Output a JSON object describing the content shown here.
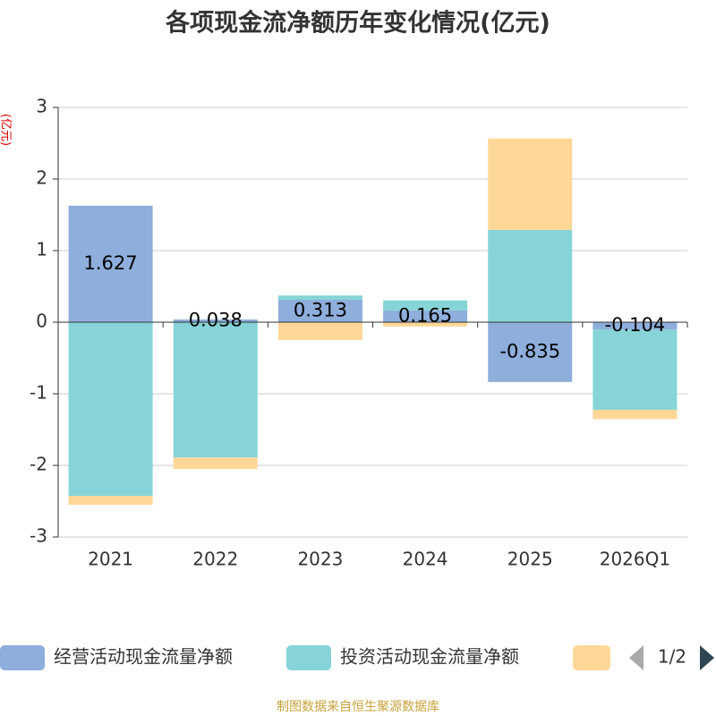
{
  "chart_data": {
    "type": "bar",
    "stacked": true,
    "title": "各项现金流净额历年变化情况(亿元)",
    "y_label": "(亿元)",
    "categories": [
      "2021",
      "2022",
      "2023",
      "2024",
      "2025",
      "2026Q1"
    ],
    "series": [
      {
        "name": "经营活动现金流量净额",
        "color": "#8eaedb",
        "values": [
          1.627,
          0.038,
          0.313,
          0.165,
          -0.835,
          -0.104
        ],
        "show_labels": true
      },
      {
        "name": "投资活动现金流量净额",
        "color": "#86d4d8",
        "values": [
          -2.425,
          -1.89,
          0.06,
          0.14,
          1.29,
          -1.12
        ]
      },
      {
        "color": "#ffd898",
        "values": [
          -0.125,
          -0.16,
          -0.25,
          -0.06,
          1.275,
          -0.13
        ]
      }
    ],
    "ylim": [
      -3,
      3
    ],
    "yticks": [
      -3,
      -2,
      -1,
      0,
      1,
      2,
      3
    ],
    "grid": true,
    "legend_page": "1/2",
    "source": "制图数据来自恒生聚源数据库"
  }
}
